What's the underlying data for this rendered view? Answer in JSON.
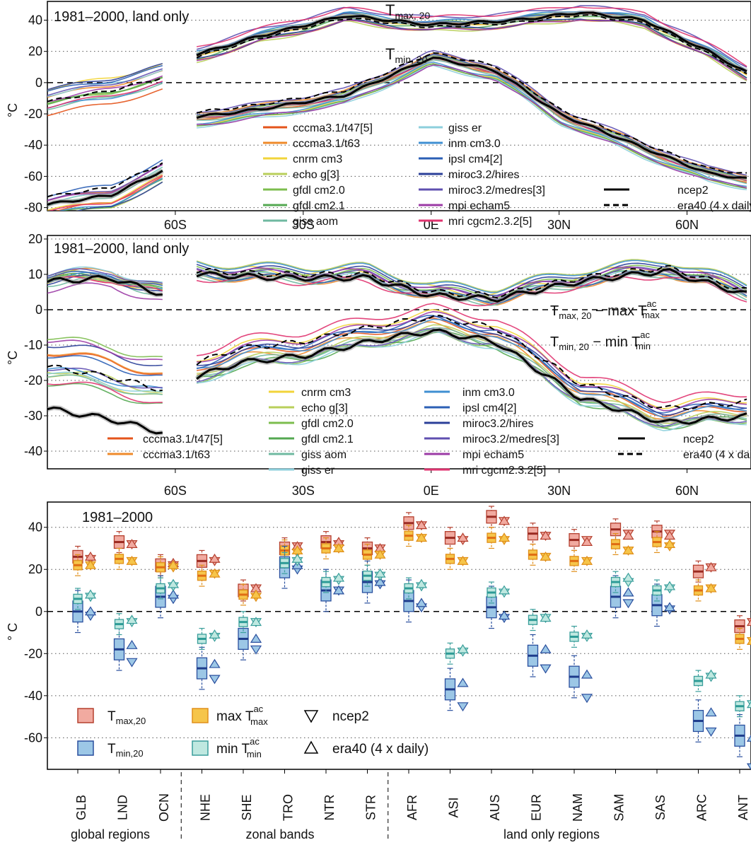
{
  "chart_data": [
    {
      "type": "line",
      "title": "1981–2000, land only",
      "ylabel": "°C",
      "ylim": [
        -82,
        52
      ],
      "yticks": [
        "40",
        "20",
        "0",
        "-20",
        "-40",
        "-60",
        "-80"
      ],
      "xticks": [
        "60S",
        "30S",
        "0E",
        "30N",
        "60N"
      ],
      "annotations": {
        "upper": "T",
        "upper_sub": "max, 20",
        "lower": "T",
        "lower_sub": "min, 20"
      },
      "grid": "dotted horizontal",
      "legend": {
        "col1": [
          "cccma3.1/t47[5]",
          "cccma3.1/t63",
          "cnrm cm3",
          "echo g[3]",
          "gfdl cm2.0",
          "gfdl cm2.1",
          "giss aom"
        ],
        "col2": [
          "giss er",
          "inm cm3.0",
          "ipsl cm4[2]",
          "miroc3.2/hires",
          "miroc3.2/medres[3]",
          "mpi echam5",
          "mri cgcm2.3.2[5]"
        ],
        "col3": [
          "ncep2",
          "era40 (4 x daily)"
        ]
      },
      "series_approx": {
        "tmax20_ncep2": {
          "lat": [
            -55,
            -40,
            -20,
            0,
            20,
            35,
            50,
            65,
            75
          ],
          "values": [
            18,
            30,
            43,
            37,
            40,
            45,
            40,
            20,
            5
          ]
        },
        "tmin20_ncep2": {
          "lat": [
            -55,
            -40,
            -20,
            0,
            15,
            30,
            50,
            65,
            75
          ],
          "values": [
            -22,
            -17,
            -8,
            16,
            8,
            -20,
            -42,
            -58,
            -62
          ]
        },
        "tmin20_antarctic_ncep2": {
          "lat": [
            -90,
            -75,
            -62
          ],
          "values": [
            -78,
            -72,
            -55
          ]
        }
      }
    },
    {
      "type": "line",
      "title": "1981–2000, land only",
      "ylabel": "°C",
      "ylim": [
        -45,
        21
      ],
      "yticks": [
        "20",
        "10",
        "0",
        "-10",
        "-20",
        "-30",
        "-40"
      ],
      "xticks": [
        "60S",
        "30S",
        "0E",
        "30N",
        "60N"
      ],
      "annotations": {
        "upper_a": "T",
        "upper_a_sub": "max, 20",
        "upper_b": " − max T",
        "upper_b_sup": "ac",
        "upper_b_sub": "max",
        "lower_a": "T",
        "lower_a_sub": "min, 20",
        "lower_b": " − min T",
        "lower_b_sup": "ac",
        "lower_b_sub": "min"
      },
      "legend": {
        "col1": [
          "cccma3.1/t47[5]",
          "cccma3.1/t63"
        ],
        "col2": [
          "cnrm cm3",
          "echo g[3]",
          "gfdl cm2.0",
          "gfdl cm2.1",
          "giss aom",
          "giss er"
        ],
        "col3": [
          "inm cm3.0",
          "ipsl cm4[2]",
          "miroc3.2/hires",
          "miroc3.2/medres[3]",
          "mpi echam5",
          "mri cgcm2.3.2[5]"
        ],
        "col4": [
          "ncep2",
          "era40 (4 x daily)"
        ]
      },
      "series_approx": {
        "max_diff_ncep2": {
          "lat": [
            -55,
            -35,
            -15,
            0,
            15,
            35,
            55,
            75
          ],
          "values": [
            10,
            9,
            9,
            4,
            3,
            8,
            11,
            4
          ]
        },
        "min_diff_ncep2": {
          "lat": [
            -55,
            -45,
            -30,
            -10,
            0,
            15,
            35,
            55,
            75
          ],
          "values": [
            -19,
            -15,
            -13,
            -8,
            -6,
            -9,
            -25,
            -32,
            -30
          ]
        },
        "min_diff_antarctic_ncep2": {
          "lat": [
            -90,
            -75,
            -62
          ],
          "values": [
            -28,
            -31,
            -35
          ]
        }
      }
    },
    {
      "type": "box",
      "title": "1981–2000",
      "ylabel": "° C",
      "ylim": [
        -75,
        52
      ],
      "yticks": [
        "40",
        "20",
        "0",
        "-20",
        "-40",
        "-60"
      ],
      "categories": [
        "GLB",
        "LND",
        "OCN",
        "NHE",
        "SHE",
        "TRO",
        "NTR",
        "STR",
        "AFR",
        "ASI",
        "AUS",
        "EUR",
        "NAM",
        "SAM",
        "SAS",
        "ARC",
        "ANT"
      ],
      "groups": [
        "global regions",
        "zonal bands",
        "land only regions"
      ],
      "series": [
        {
          "name": "T",
          "sub": "max,20",
          "values": [
            26,
            33,
            22,
            24,
            10,
            30,
            33,
            30,
            42,
            35,
            45,
            37,
            34,
            39,
            38,
            19,
            -7
          ],
          "ncep2": [
            25,
            32,
            22,
            24,
            11,
            31,
            32,
            30,
            41,
            34,
            43,
            36,
            34,
            37,
            37,
            21,
            -5
          ],
          "era40": [
            26,
            32,
            23,
            25,
            11,
            31,
            33,
            30,
            41,
            35,
            43,
            36,
            33,
            36,
            36,
            21,
            -5
          ]
        },
        {
          "name": "max T",
          "sup": "ac",
          "sub": "max",
          "values": [
            22,
            25,
            21,
            17,
            8,
            29,
            30,
            27,
            36,
            25,
            35,
            27,
            24,
            32,
            33,
            10,
            -13
          ],
          "ncep2": [
            22,
            24,
            21,
            18,
            7,
            28,
            30,
            27,
            35,
            24,
            34,
            26,
            24,
            29,
            31,
            11,
            -14
          ],
          "era40": [
            22,
            24,
            22,
            18,
            8,
            29,
            30,
            27,
            35,
            24,
            35,
            26,
            24,
            29,
            32,
            11,
            -14
          ]
        },
        {
          "name": "T",
          "sub": "min,20",
          "values": [
            0,
            -18,
            7,
            -27,
            -13,
            21,
            10,
            14,
            5,
            -37,
            2,
            -21,
            -31,
            7,
            3,
            -52,
            -59
          ],
          "ncep2": [
            -2,
            -24,
            6,
            -32,
            -18,
            20,
            10,
            13,
            2,
            -45,
            -3,
            -27,
            -41,
            4,
            1,
            -57,
            -74
          ],
          "era40": [
            0,
            -16,
            8,
            -25,
            -13,
            22,
            10,
            14,
            4,
            -34,
            -2,
            -18,
            -30,
            9,
            2,
            -48,
            -60
          ]
        },
        {
          "name": "min T",
          "sup": "ac",
          "sub": "min",
          "values": [
            6,
            -6,
            11,
            -13,
            -5,
            23,
            14,
            17,
            11,
            -20,
            9,
            -4,
            -12,
            14,
            10,
            -33,
            -45
          ],
          "ncep2": [
            7,
            -5,
            12,
            -12,
            -5,
            24,
            15,
            17,
            12,
            -19,
            9,
            -3,
            -12,
            14,
            11,
            -31,
            -44
          ],
          "era40": [
            8,
            -4,
            13,
            -11,
            -5,
            25,
            16,
            18,
            13,
            -18,
            10,
            -3,
            -11,
            16,
            12,
            -30,
            -44
          ]
        }
      ],
      "legend": {
        "a_main": "T",
        "a_sub": "max,20",
        "b_main": "max T",
        "b_sup": "ac",
        "b_sub": "max",
        "c": "ncep2",
        "d_main": "T",
        "d_sub": "min,20",
        "e_main": "min T",
        "e_sup": "ac",
        "e_sub": "min",
        "f": "era40 (4 x daily)"
      }
    }
  ]
}
